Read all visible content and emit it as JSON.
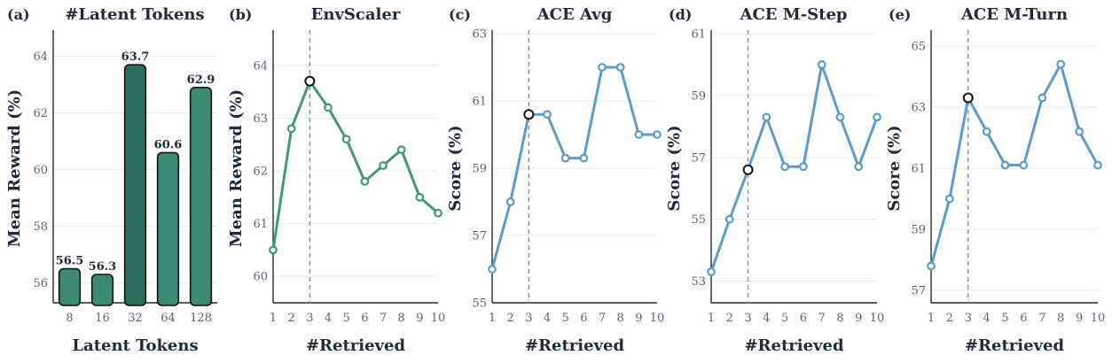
{
  "chart_data": [
    {
      "panel_label": "(a)",
      "type": "bar",
      "title": "#Latent Tokens",
      "xlabel": "Latent Tokens",
      "ylabel": "Mean Reward (%)",
      "categories": [
        "8",
        "16",
        "32",
        "64",
        "128"
      ],
      "values": [
        56.5,
        56.3,
        63.7,
        60.6,
        62.9
      ],
      "value_labels": [
        "56.5",
        "56.3",
        "63.7",
        "60.6",
        "62.9"
      ],
      "ylim": [
        55.3,
        64.8
      ],
      "yticks": [
        56,
        58,
        60,
        62,
        64
      ],
      "color": "#3a8a74",
      "highlight_index": 2,
      "highlight_color": "#2c6e5d",
      "grid": true
    },
    {
      "panel_label": "(b)",
      "type": "line",
      "title": "EnvScaler",
      "xlabel": "#Retrieved",
      "ylabel": "Mean Reward (%)",
      "x": [
        1,
        2,
        3,
        4,
        5,
        6,
        7,
        8,
        9,
        10
      ],
      "y": [
        60.5,
        62.8,
        63.7,
        63.2,
        62.6,
        61.8,
        62.1,
        62.4,
        61.5,
        61.2
      ],
      "ylim": [
        59.5,
        64.6
      ],
      "yticks": [
        60,
        61,
        62,
        63,
        64
      ],
      "color": "#3f9a7b",
      "highlight_x": 3,
      "vline_x": 3,
      "grid": true
    },
    {
      "panel_label": "(c)",
      "type": "line",
      "title": "ACE Avg",
      "xlabel": "#Retrieved",
      "ylabel": "Score (%)",
      "x": [
        1,
        2,
        3,
        4,
        5,
        6,
        7,
        8,
        9,
        10
      ],
      "y": [
        56.0,
        58.0,
        60.6,
        60.6,
        59.3,
        59.3,
        62.0,
        62.0,
        60.0,
        60.0
      ],
      "ylim": [
        55,
        63
      ],
      "yticks": [
        55,
        57,
        59,
        61,
        63
      ],
      "color": "#5b9bd0",
      "highlight_x": 3,
      "vline_x": 3,
      "grid": true
    },
    {
      "panel_label": "(d)",
      "type": "line",
      "title": "ACE M-Step",
      "xlabel": "#Retrieved",
      "ylabel": "Score (%)",
      "x": [
        1,
        2,
        3,
        4,
        5,
        6,
        7,
        8,
        9,
        10
      ],
      "y": [
        53.3,
        55.0,
        56.6,
        58.3,
        56.7,
        56.7,
        60.0,
        58.3,
        56.7,
        58.3
      ],
      "ylim": [
        52.3,
        61
      ],
      "yticks": [
        53,
        55,
        57,
        59,
        61
      ],
      "color": "#5b9bd0",
      "highlight_x": 3,
      "vline_x": 3,
      "grid": true
    },
    {
      "panel_label": "(e)",
      "type": "line",
      "title": "ACE M-Turn",
      "xlabel": "#Retrieved",
      "ylabel": "Score (%)",
      "x": [
        1,
        2,
        3,
        4,
        5,
        6,
        7,
        8,
        9,
        10
      ],
      "y": [
        57.8,
        60.0,
        63.3,
        62.2,
        61.1,
        61.1,
        63.3,
        64.4,
        62.2,
        61.1
      ],
      "ylim": [
        56.6,
        65.4
      ],
      "yticks": [
        57,
        59,
        61,
        63,
        65
      ],
      "color": "#5b9bd0",
      "highlight_x": 3,
      "vline_x": 3,
      "grid": true
    }
  ]
}
